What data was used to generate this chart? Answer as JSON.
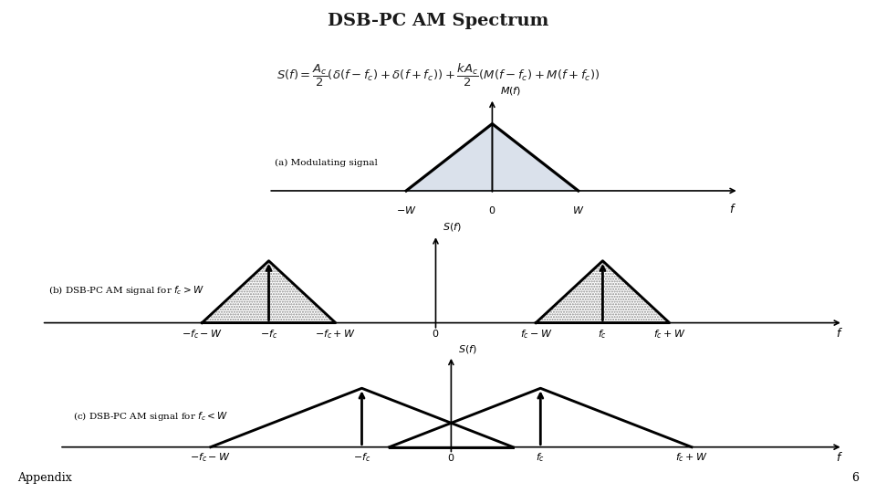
{
  "title": "DSB-PC AM Spectrum",
  "title_color": "#1a1a1a",
  "title_fontsize": 14,
  "bg_color": "#ffffff",
  "appendix_text": "Appendix",
  "page_number": "6",
  "plot_a_label": "(a) Modulating signal",
  "plot_b_label": "(b) DSB-PC AM signal for $f_c > W$",
  "plot_c_label": "(c) DSB-PC AM signal for $f_c < W$",
  "fill_color_a": "#d4dce8",
  "line_color": "#000000",
  "lw": 1.5
}
